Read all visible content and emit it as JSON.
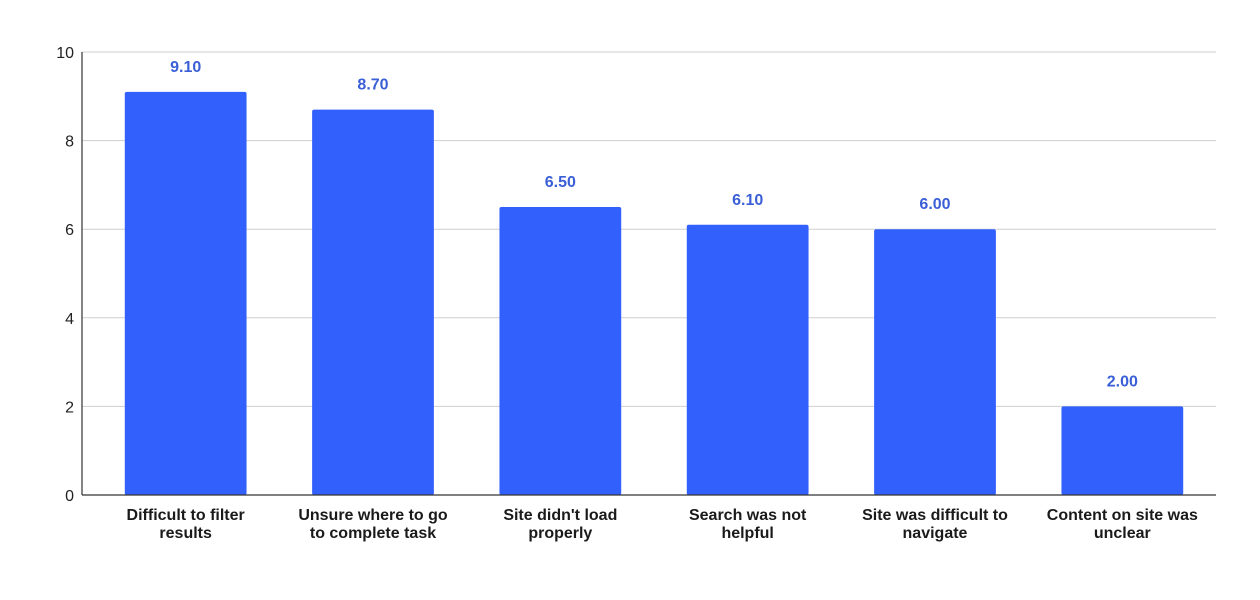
{
  "chart_data": {
    "type": "bar",
    "categories": [
      "Difficult to filter results",
      "Unsure where to go to complete task",
      "Site didn't load properly",
      "Search was not helpful",
      "Site was difficult to navigate",
      "Content on site was unclear"
    ],
    "category_lines": [
      [
        "Difficult to filter",
        "results"
      ],
      [
        "Unsure where to go",
        "to complete task"
      ],
      [
        "Site didn't load",
        "properly"
      ],
      [
        "Search was not",
        "helpful"
      ],
      [
        "Site was difficult to",
        "navigate"
      ],
      [
        "Content on site was",
        "unclear"
      ]
    ],
    "values": [
      9.1,
      8.7,
      6.5,
      6.1,
      6.0,
      2.0
    ],
    "data_labels": [
      "9.10",
      "8.70",
      "6.50",
      "6.10",
      "6.00",
      "2.00"
    ],
    "y_ticks": [
      "0",
      "2",
      "4",
      "6",
      "8",
      "10"
    ],
    "ylim": [
      0,
      10
    ],
    "title": "",
    "xlabel": "",
    "ylabel": "",
    "grid": true,
    "legend": "none",
    "bar_color": "#3260fc",
    "label_color": "#3a5fd6"
  }
}
